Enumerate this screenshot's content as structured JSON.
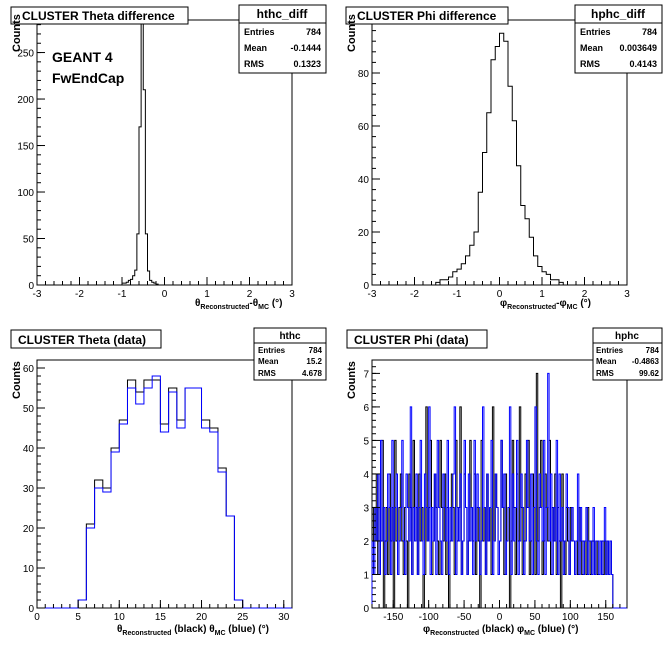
{
  "panels": [
    {
      "id": "hthc_diff",
      "title": "CLUSTER Theta difference",
      "stats": {
        "name": "hthc_diff",
        "rows": [
          [
            "Entries",
            "784"
          ],
          [
            "Mean",
            "-0.1444"
          ],
          [
            "RMS",
            "0.1323"
          ]
        ]
      },
      "ylabel": "Counts",
      "annotations": [
        "GEANT 4",
        "FwEndCap"
      ]
    },
    {
      "id": "hphc_diff",
      "title": "CLUSTER Phi difference",
      "stats": {
        "name": "hphc_diff",
        "rows": [
          [
            "Entries",
            "784"
          ],
          [
            "Mean",
            "0.003649"
          ],
          [
            "RMS",
            "0.4143"
          ]
        ]
      },
      "ylabel": "Counts"
    },
    {
      "id": "hthc",
      "title": "CLUSTER Theta (data)",
      "stats": {
        "name": "hthc",
        "rows": [
          [
            "Entries",
            "784"
          ],
          [
            "Mean",
            "15.2"
          ],
          [
            "RMS",
            "4.678"
          ]
        ]
      },
      "ylabel": "Counts"
    },
    {
      "id": "hphc",
      "title": "CLUSTER Phi (data)",
      "stats": {
        "name": "hphc",
        "rows": [
          [
            "Entries",
            "784"
          ],
          [
            "Mean",
            "-0.4863"
          ],
          [
            "RMS",
            "99.62"
          ]
        ]
      },
      "ylabel": "Counts"
    }
  ],
  "chart_data": [
    {
      "type": "bar",
      "style": "histogram",
      "xlabel": "θReconstructed-θMC (°)",
      "ylabel": "Counts",
      "xlim": [
        -3,
        3
      ],
      "ylim": [
        0,
        285
      ],
      "x_ticks": [
        "-3",
        "-2",
        "-1",
        "0",
        "1",
        "2",
        "3"
      ],
      "y_ticks": [
        "0",
        "50",
        "100",
        "150",
        "200",
        "250"
      ],
      "bin_edges_start": -1.0,
      "bin_width": 0.05,
      "series": [
        {
          "color": "#000000",
          "values": [
            2,
            2,
            3,
            5,
            6,
            10,
            16,
            55,
            170,
            285,
            210,
            55,
            15,
            5,
            3,
            2,
            1
          ]
        }
      ]
    },
    {
      "type": "bar",
      "style": "histogram",
      "xlabel": "φReconstructed-φMC (°)",
      "ylabel": "Counts",
      "xlim": [
        -3,
        3
      ],
      "ylim": [
        0,
        100
      ],
      "x_ticks": [
        "-3",
        "-2",
        "-1",
        "0",
        "1",
        "2",
        "3"
      ],
      "y_ticks": [
        "0",
        "20",
        "40",
        "60",
        "80",
        "100"
      ],
      "bin_edges_start": -1.5,
      "bin_width": 0.1,
      "series": [
        {
          "color": "#000000",
          "values": [
            1,
            2,
            2,
            3,
            5,
            6,
            8,
            11,
            15,
            20,
            35,
            50,
            65,
            85,
            90,
            95,
            92,
            75,
            62,
            45,
            30,
            25,
            18,
            11,
            7,
            5,
            4,
            2,
            2,
            1
          ]
        }
      ]
    },
    {
      "type": "bar",
      "style": "histogram",
      "xlabel": "θReconstructed (black) θMC (blue) (°)",
      "ylabel": "Counts",
      "xlim": [
        0,
        31
      ],
      "ylim": [
        0,
        62
      ],
      "x_ticks": [
        "0",
        "5",
        "10",
        "15",
        "20",
        "25",
        "30"
      ],
      "y_ticks": [
        "0",
        "10",
        "20",
        "30",
        "40",
        "50",
        "60"
      ],
      "bin_edges_start": 0,
      "bin_width": 1,
      "series": [
        {
          "name": "black",
          "color": "#000000",
          "values": [
            0,
            0,
            0,
            0,
            0,
            2,
            21,
            32,
            30,
            40,
            47,
            57,
            54,
            57,
            57,
            46,
            55,
            47,
            55,
            55,
            47,
            45,
            35,
            23,
            2,
            0,
            0,
            0,
            0,
            0,
            0
          ]
        },
        {
          "name": "blue",
          "color": "#0000ff",
          "values": [
            0,
            0,
            0,
            0,
            0,
            2,
            20,
            30,
            29,
            39,
            46,
            55,
            51,
            55,
            58,
            44,
            54,
            45,
            55,
            55,
            45,
            44,
            34,
            23,
            2,
            0,
            0,
            0,
            0,
            0,
            0
          ]
        }
      ]
    },
    {
      "type": "bar",
      "style": "histogram",
      "xlabel": "φReconstructed (black) φMC (blue) (°)",
      "ylabel": "Counts",
      "xlim": [
        -180,
        180
      ],
      "ylim": [
        0,
        7.4
      ],
      "x_ticks": [
        "-150",
        "-100",
        "-50",
        "0",
        "50",
        "100",
        "150"
      ],
      "y_ticks": [
        "0",
        "1",
        "2",
        "3",
        "4",
        "5",
        "6",
        "7"
      ],
      "bin_edges_start": -180,
      "bin_width": 2,
      "series": [
        {
          "name": "black",
          "color": "#000000",
          "values": [
            1,
            3,
            2,
            4,
            1,
            3,
            2,
            5,
            0,
            2,
            3,
            1,
            4,
            2,
            3,
            0,
            5,
            2,
            1,
            3,
            4,
            2,
            1,
            3,
            2,
            0,
            4,
            3,
            1,
            5,
            2,
            3,
            1,
            4,
            2,
            3,
            0,
            1,
            6,
            2,
            3,
            5,
            1,
            2,
            4,
            3,
            2,
            1,
            5,
            3,
            2,
            4,
            1,
            3,
            0,
            2,
            4,
            3,
            1,
            5,
            2,
            3,
            6,
            1,
            2,
            4,
            3,
            1,
            2,
            5,
            3,
            2,
            4,
            1,
            3,
            2,
            0,
            5,
            2,
            3,
            1,
            4,
            2,
            3,
            1,
            6,
            2,
            4,
            3,
            1,
            2,
            5,
            3,
            1,
            4,
            2,
            3,
            0,
            2,
            5,
            3,
            1,
            4,
            2,
            6,
            3,
            1,
            2,
            4,
            3,
            5,
            1,
            2,
            4,
            3,
            1,
            7,
            2,
            3,
            5,
            1,
            2,
            4,
            3,
            2,
            5,
            1,
            3,
            2,
            4,
            1,
            3,
            2,
            0,
            4,
            2,
            1,
            3,
            2,
            1,
            3,
            2,
            2,
            1,
            2,
            1,
            3,
            2,
            1,
            2,
            2,
            1,
            3,
            2,
            1,
            2,
            2,
            1,
            2,
            1,
            1,
            2,
            2,
            1,
            2,
            1,
            2,
            1,
            2,
            1
          ]
        },
        {
          "name": "blue",
          "color": "#0000ff",
          "values": [
            2,
            1,
            3,
            2,
            4,
            1,
            5,
            2,
            3,
            1,
            2,
            4,
            3,
            1,
            5,
            2,
            3,
            4,
            1,
            2,
            3,
            5,
            2,
            1,
            4,
            3,
            2,
            6,
            1,
            3,
            2,
            4,
            1,
            3,
            5,
            2,
            1,
            4,
            3,
            2,
            6,
            1,
            3,
            2,
            4,
            1,
            5,
            3,
            2,
            1,
            4,
            3,
            2,
            5,
            1,
            3,
            2,
            4,
            6,
            1,
            3,
            2,
            4,
            1,
            2,
            5,
            3,
            1,
            4,
            2,
            3,
            1,
            5,
            2,
            4,
            3,
            1,
            2,
            6,
            3,
            1,
            4,
            2,
            3,
            5,
            1,
            2,
            4,
            3,
            1,
            2,
            5,
            3,
            4,
            1,
            2,
            3,
            6,
            1,
            4,
            2,
            3,
            5,
            1,
            2,
            4,
            3,
            1,
            2,
            5,
            3,
            2,
            4,
            1,
            3,
            6,
            2,
            1,
            4,
            3,
            2,
            5,
            1,
            3,
            7,
            2,
            4,
            1,
            3,
            2,
            5,
            1,
            4,
            2,
            3,
            1,
            2,
            4,
            3,
            1,
            2,
            3,
            2,
            1,
            2,
            4,
            1,
            3,
            2,
            1,
            2,
            3,
            1,
            2,
            2,
            1,
            3,
            1,
            2,
            2,
            1,
            2,
            1,
            2,
            3,
            1,
            2,
            1,
            2,
            1
          ]
        }
      ]
    }
  ]
}
